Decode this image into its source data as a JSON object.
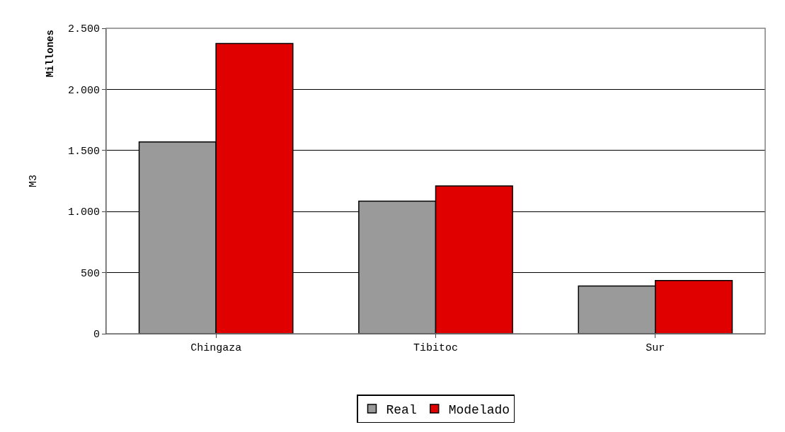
{
  "chart_data": {
    "type": "bar",
    "ylabel": "M3",
    "annotations": [
      "Millones"
    ],
    "categories": [
      "Chingaza",
      "Tibitoc",
      "Sur"
    ],
    "series": [
      {
        "name": "Real",
        "color": "#9a9a9a",
        "values": [
          1570,
          1085,
          390
        ]
      },
      {
        "name": "Modelado",
        "color": "#e00000",
        "values": [
          2375,
          1210,
          435
        ]
      }
    ],
    "ylim": [
      0,
      2500
    ],
    "yticks": [
      {
        "value": 0,
        "label": "0"
      },
      {
        "value": 500,
        "label": "500"
      },
      {
        "value": 1000,
        "label": "1.000"
      },
      {
        "value": 1500,
        "label": "1.500"
      },
      {
        "value": 2000,
        "label": "2.000"
      },
      {
        "value": 2500,
        "label": "2.500"
      }
    ],
    "grid": "y",
    "legend": "bottom"
  }
}
